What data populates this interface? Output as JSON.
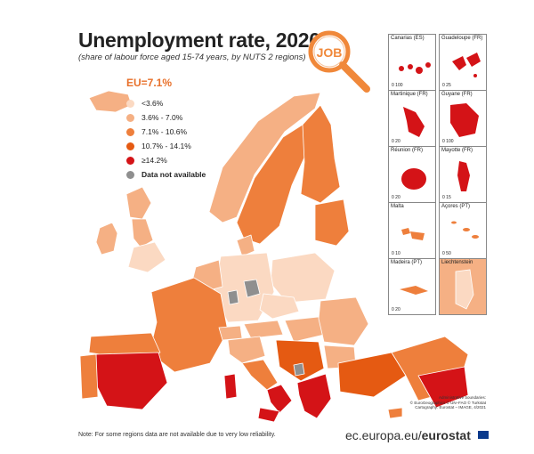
{
  "title": "Unemployment rate, 2020",
  "subtitle": "(share of labour force aged 15-74 years, by NUTS 2 regions)",
  "job_label": "JOB",
  "legend": {
    "eu_label": "EU=7.1%",
    "items": [
      {
        "label": "<3.6%",
        "color": "#fbd9c2"
      },
      {
        "label": "3.6% - 7.0%",
        "color": "#f5b084"
      },
      {
        "label": "7.1% - 10.6%",
        "color": "#ee7f3c"
      },
      {
        "label": "10.7% - 14.1%",
        "color": "#e55a12"
      },
      {
        "label": "≥14.2%",
        "color": "#d41317"
      },
      {
        "label": "Data not available",
        "color": "#8f8f8f"
      }
    ]
  },
  "insets": [
    {
      "label": "Canarias (ES)",
      "scale": "0   100"
    },
    {
      "label": "Guadeloupe (FR)",
      "scale": "0   25"
    },
    {
      "label": "Martinique (FR)",
      "scale": "0   20"
    },
    {
      "label": "Guyane (FR)",
      "scale": "0   100"
    },
    {
      "label": "Réunion (FR)",
      "scale": "0   20"
    },
    {
      "label": "Mayotte (FR)",
      "scale": "0   15"
    },
    {
      "label": "Malta",
      "scale": "0   10"
    },
    {
      "label": "Açores (PT)",
      "scale": "0   50"
    },
    {
      "label": "Madeira (PT)",
      "scale": "0   20"
    },
    {
      "label": "Liechtenstein",
      "scale": "0   5"
    }
  ],
  "credits": [
    "Administrative boundaries:",
    "© EuroGeographics © UN–FAO © Turkstat",
    "Cartography: Eurostat – IMAGE, 4/2021"
  ],
  "note": "Note: For some regions data are not available due to very low reliability.",
  "brand": {
    "domain": "ec.europa.eu/",
    "name": "eurostat"
  },
  "colors": {
    "accent": "#e8702a",
    "sea": "#ffffff",
    "border": "#ffffff"
  }
}
